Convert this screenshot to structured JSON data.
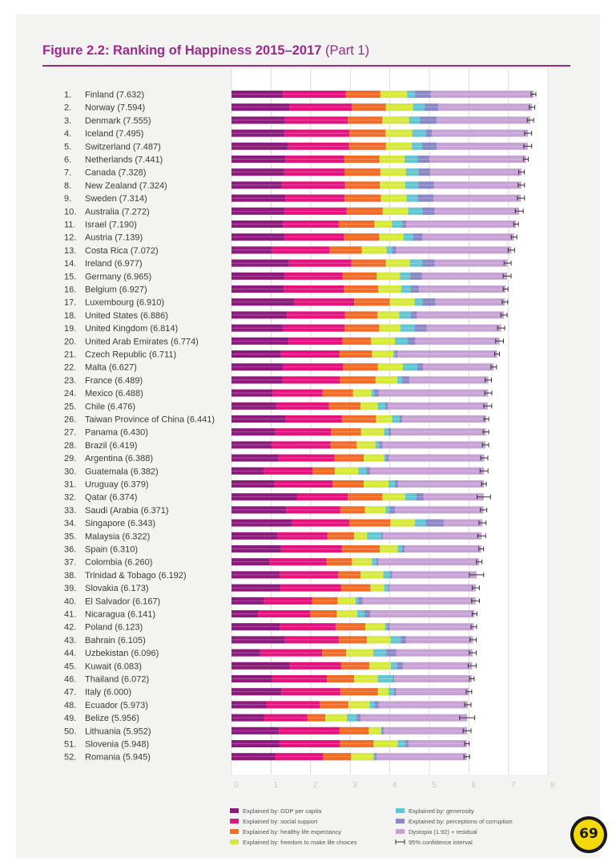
{
  "title": {
    "bold": "Figure 2.2: Ranking of Happiness 2015–2017",
    "part": " (Part 1)"
  },
  "colors": {
    "title": "#9c2a8f",
    "gdp": "#8e1a7e",
    "social_support": "#e6137f",
    "life_expectancy": "#f26b27",
    "freedom": "#d7ea3a",
    "generosity": "#62c6d3",
    "corruption": "#8a88c7",
    "dystopia": "#c7a2d4"
  },
  "logo": {
    "icon": "yellow-circle-logo-icon",
    "glyph": "69"
  },
  "chart_data": {
    "type": "bar",
    "orientation": "horizontal",
    "stacked": true,
    "title": "Figure 2.2: Ranking of Happiness 2015–2017 (Part 1)",
    "xlim": [
      0,
      8
    ],
    "x_ticks": [
      "0",
      "1",
      "2",
      "3",
      "4",
      "5",
      "6",
      "7",
      "8"
    ],
    "grid": true,
    "legend_position": "bottom",
    "legend": [
      {
        "key": "gdp",
        "label": "Explained by: GDP per capita"
      },
      {
        "key": "generosity",
        "label": "Explained by: generosity"
      },
      {
        "key": "social_support",
        "label": "Explained by: social support"
      },
      {
        "key": "corruption",
        "label": "Explained by: perceptions of corruption"
      },
      {
        "key": "life_expectancy",
        "label": "Explained by: healthy life expectancy"
      },
      {
        "key": "dystopia",
        "label": "Dystopia (1.92) + residual"
      },
      {
        "key": "freedom",
        "label": "Explained by: freedom to make life choices"
      },
      {
        "key": "ci",
        "label": "95% confidence interval"
      }
    ],
    "rows": [
      {
        "rank": "1.",
        "country": "Finland",
        "score": "(7.632)",
        "value": 7.632,
        "parts": [
          1.3,
          1.59,
          0.87,
          0.68,
          0.2,
          0.39
        ]
      },
      {
        "rank": "2.",
        "country": "Norway",
        "score": "(7.594)",
        "value": 7.594,
        "parts": [
          1.46,
          1.58,
          0.86,
          0.69,
          0.29,
          0.34
        ]
      },
      {
        "rank": "3.",
        "country": "Denmark",
        "score": "(7.555)",
        "value": 7.555,
        "parts": [
          1.35,
          1.59,
          0.87,
          0.68,
          0.28,
          0.41
        ]
      },
      {
        "rank": "4.",
        "country": "Iceland",
        "score": "(7.495)",
        "value": 7.495,
        "parts": [
          1.34,
          1.64,
          0.91,
          0.68,
          0.35,
          0.14
        ]
      },
      {
        "rank": "5.",
        "country": "Switzerland",
        "score": "(7.487)",
        "value": 7.487,
        "parts": [
          1.42,
          1.55,
          0.93,
          0.66,
          0.26,
          0.36
        ]
      },
      {
        "rank": "6.",
        "country": "Netherlands",
        "score": "(7.441)",
        "value": 7.441,
        "parts": [
          1.36,
          1.49,
          0.89,
          0.64,
          0.33,
          0.29
        ]
      },
      {
        "rank": "7.",
        "country": "Canada",
        "score": "(7.328)",
        "value": 7.328,
        "parts": [
          1.33,
          1.53,
          0.9,
          0.65,
          0.32,
          0.29
        ]
      },
      {
        "rank": "8.",
        "country": "New Zealand",
        "score": "(7.324)",
        "value": 7.324,
        "parts": [
          1.27,
          1.6,
          0.88,
          0.64,
          0.33,
          0.39
        ]
      },
      {
        "rank": "9.",
        "country": "Sweden",
        "score": "(7.314)",
        "value": 7.314,
        "parts": [
          1.36,
          1.5,
          0.91,
          0.66,
          0.28,
          0.39
        ]
      },
      {
        "rank": "10.",
        "country": "Australia",
        "score": "(7.272)",
        "value": 7.272,
        "parts": [
          1.34,
          1.57,
          0.91,
          0.65,
          0.36,
          0.3
        ]
      },
      {
        "rank": "11.",
        "country": "Israel",
        "score": "(7.190)",
        "value": 7.19,
        "parts": [
          1.3,
          1.41,
          0.9,
          0.45,
          0.26,
          0.09
        ]
      },
      {
        "rank": "12.",
        "country": "Austria",
        "score": "(7.139)",
        "value": 7.139,
        "parts": [
          1.34,
          1.5,
          0.89,
          0.62,
          0.24,
          0.23
        ]
      },
      {
        "rank": "13.",
        "country": "Costa Rica",
        "score": "(7.072)",
        "value": 7.072,
        "parts": [
          1.01,
          1.46,
          0.82,
          0.63,
          0.14,
          0.1
        ]
      },
      {
        "rank": "14.",
        "country": "Ireland",
        "score": "(6.977)",
        "value": 6.977,
        "parts": [
          1.45,
          1.58,
          0.87,
          0.61,
          0.31,
          0.31
        ]
      },
      {
        "rank": "15.",
        "country": "Germany",
        "score": "(6.965)",
        "value": 6.965,
        "parts": [
          1.34,
          1.47,
          0.86,
          0.59,
          0.26,
          0.29
        ]
      },
      {
        "rank": "16.",
        "country": "Belgium",
        "score": "(6.927)",
        "value": 6.927,
        "parts": [
          1.32,
          1.52,
          0.87,
          0.58,
          0.24,
          0.2
        ]
      },
      {
        "rank": "17.",
        "country": "Luxembourg",
        "score": "(6.910)",
        "value": 6.91,
        "parts": [
          1.58,
          1.52,
          0.9,
          0.63,
          0.2,
          0.32
        ]
      },
      {
        "rank": "18.",
        "country": "United States",
        "score": "(6.886)",
        "value": 6.886,
        "parts": [
          1.4,
          1.47,
          0.82,
          0.55,
          0.29,
          0.15
        ]
      },
      {
        "rank": "19.",
        "country": "United Kingdom",
        "score": "(6.814)",
        "value": 6.814,
        "parts": [
          1.3,
          1.56,
          0.87,
          0.54,
          0.36,
          0.3
        ]
      },
      {
        "rank": "20.",
        "country": "United Arab Emirates",
        "score": "(6.774)",
        "value": 6.774,
        "parts": [
          1.44,
          1.36,
          0.72,
          0.61,
          0.32,
          0.19
        ]
      },
      {
        "rank": "21.",
        "country": "Czech Republic",
        "score": "(6.711)",
        "value": 6.711,
        "parts": [
          1.25,
          1.48,
          0.82,
          0.54,
          0.05,
          0.05
        ]
      },
      {
        "rank": "22.",
        "country": "Malta",
        "score": "(6.627)",
        "value": 6.627,
        "parts": [
          1.3,
          1.52,
          0.88,
          0.63,
          0.37,
          0.14
        ]
      },
      {
        "rank": "23.",
        "country": "France",
        "score": "(6.489)",
        "value": 6.489,
        "parts": [
          1.29,
          1.45,
          0.9,
          0.55,
          0.12,
          0.18
        ]
      },
      {
        "rank": "24.",
        "country": "Mexico",
        "score": "(6.488)",
        "value": 6.488,
        "parts": [
          1.04,
          1.26,
          0.77,
          0.47,
          0.07,
          0.11
        ]
      },
      {
        "rank": "25.",
        "country": "Chile",
        "score": "(6.476)",
        "value": 6.476,
        "parts": [
          1.13,
          1.33,
          0.8,
          0.44,
          0.19,
          0.06
        ]
      },
      {
        "rank": "26.",
        "country": "Taiwan Province of China",
        "score": "(6.441)",
        "value": 6.441,
        "parts": [
          1.37,
          1.42,
          0.86,
          0.41,
          0.19,
          0.06
        ]
      },
      {
        "rank": "27.",
        "country": "Panama",
        "score": "(6.430)",
        "value": 6.43,
        "parts": [
          1.1,
          1.41,
          0.76,
          0.59,
          0.11,
          0.06
        ]
      },
      {
        "rank": "28.",
        "country": "Brazil",
        "score": "(6.419)",
        "value": 6.419,
        "parts": [
          1.02,
          1.48,
          0.66,
          0.48,
          0.1,
          0.07
        ]
      },
      {
        "rank": "29.",
        "country": "Argentina",
        "score": "(6.388)",
        "value": 6.388,
        "parts": [
          1.19,
          1.41,
          0.74,
          0.52,
          0.05,
          0.06
        ]
      },
      {
        "rank": "30.",
        "country": "Guatemala",
        "score": "(6.382)",
        "value": 6.382,
        "parts": [
          0.81,
          1.24,
          0.56,
          0.6,
          0.2,
          0.09
        ]
      },
      {
        "rank": "31.",
        "country": "Uruguay",
        "score": "(6.379)",
        "value": 6.379,
        "parts": [
          1.09,
          1.46,
          0.79,
          0.63,
          0.16,
          0.08
        ]
      },
      {
        "rank": "32.",
        "country": "Qatar",
        "score": "(6.374)",
        "value": 6.374,
        "parts": [
          1.65,
          1.29,
          0.87,
          0.58,
          0.28,
          0.18
        ]
      },
      {
        "rank": "33.",
        "country": "Saudi (Arabia",
        "score": "(6.371)",
        "value": 6.371,
        "parts": [
          1.38,
          1.37,
          0.62,
          0.53,
          0.1,
          0.13
        ]
      },
      {
        "rank": "34.",
        "country": "Singapore",
        "score": "(6.343)",
        "value": 6.343,
        "parts": [
          1.53,
          1.45,
          1.03,
          0.63,
          0.27,
          0.45
        ]
      },
      {
        "rank": "35.",
        "country": "Malaysia",
        "score": "(6.322)",
        "value": 6.322,
        "parts": [
          1.16,
          1.26,
          0.68,
          0.33,
          0.35,
          0.04
        ]
      },
      {
        "rank": "36.",
        "country": "Spain",
        "score": "(6.310)",
        "value": 6.31,
        "parts": [
          1.25,
          1.54,
          0.96,
          0.45,
          0.11,
          0.06
        ]
      },
      {
        "rank": "37.",
        "country": "Colombia",
        "score": "(6.260)",
        "value": 6.26,
        "parts": [
          0.96,
          1.44,
          0.64,
          0.51,
          0.11,
          0.05
        ]
      },
      {
        "rank": "38.",
        "country": "Trinidad & Tobago",
        "score": "(6.192)",
        "value": 6.192,
        "parts": [
          1.22,
          1.48,
          0.56,
          0.58,
          0.17,
          0.05
        ]
      },
      {
        "rank": "39.",
        "country": "Slovakia",
        "score": "(6.173)",
        "value": 6.173,
        "parts": [
          1.24,
          1.53,
          0.74,
          0.35,
          0.1,
          0.03
        ]
      },
      {
        "rank": "40.",
        "country": "El Salvador",
        "score": "(6.167)",
        "value": 6.167,
        "parts": [
          0.81,
          1.23,
          0.64,
          0.46,
          0.07,
          0.1
        ]
      },
      {
        "rank": "41.",
        "country": "Nicaragua",
        "score": "(6.141)",
        "value": 6.141,
        "parts": [
          0.67,
          1.32,
          0.67,
          0.52,
          0.18,
          0.14
        ]
      },
      {
        "rank": "42.",
        "country": "Poland",
        "score": "(6.123)",
        "value": 6.123,
        "parts": [
          1.22,
          1.41,
          0.75,
          0.5,
          0.06,
          0.05
        ]
      },
      {
        "rank": "43.",
        "country": "Bahrain",
        "score": "(6.105)",
        "value": 6.105,
        "parts": [
          1.35,
          1.36,
          0.71,
          0.6,
          0.26,
          0.13
        ]
      },
      {
        "rank": "44.",
        "country": "Uzbekistan",
        "score": "(6.096)",
        "value": 6.096,
        "parts": [
          0.72,
          1.57,
          0.61,
          0.69,
          0.32,
          0.25
        ]
      },
      {
        "rank": "45.",
        "country": "Kuwait",
        "score": "(6.083)",
        "value": 6.083,
        "parts": [
          1.47,
          1.3,
          0.71,
          0.55,
          0.16,
          0.14
        ]
      },
      {
        "rank": "46.",
        "country": "Thailand",
        "score": "(6.072)",
        "value": 6.072,
        "parts": [
          1.03,
          1.38,
          0.69,
          0.6,
          0.38,
          0.03
        ]
      },
      {
        "rank": "47.",
        "country": "Italy",
        "score": "(6.000)",
        "value": 6.0,
        "parts": [
          1.26,
          1.49,
          0.95,
          0.27,
          0.14,
          0.05
        ]
      },
      {
        "rank": "48.",
        "country": "Ecuador",
        "score": "(5.973)",
        "value": 5.973,
        "parts": [
          0.88,
          1.35,
          0.72,
          0.55,
          0.12,
          0.1
        ]
      },
      {
        "rank": "49.",
        "country": "Belize",
        "score": "(5.956)",
        "value": 5.956,
        "parts": [
          0.82,
          1.1,
          0.45,
          0.55,
          0.24,
          0.1
        ]
      },
      {
        "rank": "50.",
        "country": "Lithuania",
        "score": "(5.952)",
        "value": 5.952,
        "parts": [
          1.2,
          1.53,
          0.74,
          0.31,
          0.02,
          0.04
        ]
      },
      {
        "rank": "51.",
        "country": "Slovenia",
        "score": "(5.948)",
        "value": 5.948,
        "parts": [
          1.22,
          1.52,
          0.85,
          0.61,
          0.2,
          0.07
        ]
      },
      {
        "rank": "52.",
        "country": "Romania",
        "score": "(5.945)",
        "value": 5.945,
        "parts": [
          1.11,
          1.2,
          0.71,
          0.57,
          0.04,
          0.03
        ]
      }
    ]
  }
}
